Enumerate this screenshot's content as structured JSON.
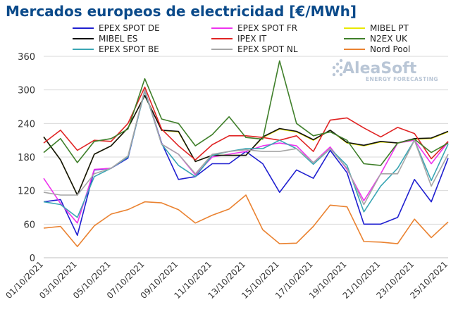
{
  "chart_data": {
    "type": "line",
    "title": "Mercados europeos de electricidad [€/MWh]",
    "xlabel": "",
    "ylabel": "",
    "ylim": [
      0,
      360
    ],
    "yticks": [
      0,
      60,
      120,
      180,
      240,
      300,
      360
    ],
    "grid": true,
    "legend_position": "top",
    "x": [
      "01/10/2021",
      "02/10/2021",
      "03/10/2021",
      "04/10/2021",
      "05/10/2021",
      "06/10/2021",
      "07/10/2021",
      "08/10/2021",
      "09/10/2021",
      "10/10/2021",
      "11/10/2021",
      "12/10/2021",
      "13/10/2021",
      "14/10/2021",
      "15/10/2021",
      "16/10/2021",
      "17/10/2021",
      "18/10/2021",
      "19/10/2021",
      "20/10/2021",
      "21/10/2021",
      "22/10/2021",
      "23/10/2021",
      "24/10/2021",
      "25/10/2021"
    ],
    "x_tick_labels": [
      "01/10/2021",
      "03/10/2021",
      "05/10/2021",
      "07/10/2021",
      "09/10/2021",
      "11/10/2021",
      "13/10/2021",
      "15/10/2021",
      "17/10/2021",
      "19/10/2021",
      "21/10/2021",
      "23/10/2021",
      "25/10/2021"
    ],
    "series": [
      {
        "name": "EPEX SPOT DE",
        "color": "#1f1fd0",
        "values": [
          100,
          104,
          40,
          157,
          160,
          178,
          300,
          205,
          140,
          145,
          168,
          168,
          190,
          168,
          117,
          157,
          142,
          192,
          152,
          60,
          60,
          72,
          140,
          100,
          178
        ]
      },
      {
        "name": "EPEX SPOT FR",
        "color": "#ee33ee",
        "values": [
          142,
          97,
          62,
          158,
          160,
          180,
          300,
          203,
          185,
          148,
          180,
          185,
          190,
          200,
          205,
          200,
          170,
          198,
          158,
          102,
          150,
          205,
          210,
          168,
          207
        ]
      },
      {
        "name": "MIBEL PT",
        "color": "#e8e800",
        "values": [
          216,
          175,
          112,
          185,
          200,
          232,
          290,
          228,
          225,
          172,
          183,
          183,
          183,
          215,
          230,
          225,
          210,
          228,
          205,
          200,
          207,
          205,
          212,
          213,
          225
        ]
      },
      {
        "name": "MIBEL ES",
        "color": "#111111",
        "values": [
          216,
          175,
          112,
          185,
          200,
          232,
          290,
          228,
          226,
          172,
          183,
          183,
          183,
          216,
          231,
          226,
          211,
          228,
          206,
          201,
          208,
          205,
          213,
          214,
          226
        ]
      },
      {
        "name": "IPEX IT",
        "color": "#e02424",
        "values": [
          205,
          228,
          192,
          210,
          208,
          240,
          305,
          230,
          200,
          175,
          202,
          218,
          218,
          215,
          210,
          218,
          190,
          246,
          250,
          232,
          216,
          233,
          222,
          177,
          208
        ]
      },
      {
        "name": "N2EX UK",
        "color": "#3f7f2a",
        "values": [
          188,
          213,
          170,
          208,
          213,
          230,
          320,
          248,
          240,
          200,
          220,
          252,
          215,
          212,
          352,
          240,
          218,
          225,
          210,
          168,
          165,
          205,
          212,
          188,
          205
        ]
      },
      {
        "name": "EPEX SPOT BE",
        "color": "#3aa6b4",
        "values": [
          100,
          95,
          72,
          145,
          160,
          180,
          298,
          203,
          165,
          145,
          183,
          190,
          195,
          195,
          210,
          195,
          167,
          195,
          165,
          82,
          128,
          160,
          210,
          138,
          203
        ]
      },
      {
        "name": "EPEX SPOT NL",
        "color": "#a6a6a6",
        "values": [
          117,
          112,
          112,
          150,
          160,
          182,
          300,
          203,
          185,
          150,
          185,
          190,
          193,
          190,
          190,
          195,
          170,
          195,
          160,
          95,
          150,
          150,
          210,
          128,
          185
        ]
      },
      {
        "name": "Nord Pool",
        "color": "#ea8230",
        "values": [
          53,
          56,
          20,
          57,
          78,
          86,
          100,
          98,
          86,
          62,
          76,
          87,
          112,
          50,
          25,
          26,
          56,
          94,
          91,
          29,
          28,
          25,
          69,
          36,
          64
        ]
      }
    ]
  },
  "watermark": {
    "name": "AleaSoft",
    "tagline": "ENERGY FORECASTING"
  }
}
